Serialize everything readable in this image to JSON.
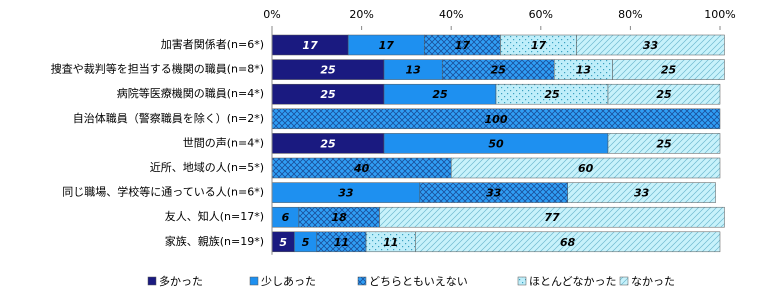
{
  "chart_data": {
    "type": "stacked-bar-horizontal",
    "categories": [
      "加害者関係者(n=6*)",
      "捜査や裁判等を担当する機関の職員(n=8*)",
      "病院等医療機関の職員(n=4*)",
      "自治体職員（警察職員を除く）(n=2*)",
      "世間の声(n=4*)",
      "近所、地域の人(n=5*)",
      "同じ職場、学校等に通っている人(n=6*)",
      "友人、知人(n=17*)",
      "家族、親族(n=19*)"
    ],
    "series": [
      {
        "name": "多かった",
        "color": "#1a1a80",
        "values": [
          17,
          25,
          25,
          0,
          25,
          0,
          0,
          0,
          5
        ]
      },
      {
        "name": "少しあった",
        "color": "#1e90f0",
        "values": [
          17,
          13,
          25,
          0,
          50,
          0,
          33,
          6,
          5
        ]
      },
      {
        "name": "どちらともいえない",
        "color": "#2f9ef5",
        "values": [
          17,
          25,
          0,
          100,
          0,
          40,
          33,
          18,
          11
        ]
      },
      {
        "name": "ほとんどなかった",
        "color": "#bfeefa",
        "values": [
          17,
          13,
          25,
          0,
          0,
          0,
          0,
          0,
          11
        ]
      },
      {
        "name": "なかった",
        "color": "#c8f2fb",
        "values": [
          33,
          25,
          25,
          0,
          25,
          60,
          33,
          77,
          68
        ]
      }
    ],
    "xlim": [
      0,
      100
    ],
    "xticks": [
      {
        "value": 0,
        "label": "0%"
      },
      {
        "value": 20,
        "label": "20%"
      },
      {
        "value": 40,
        "label": "40%"
      },
      {
        "value": 60,
        "label": "60%"
      },
      {
        "value": 80,
        "label": "80%"
      },
      {
        "value": 100,
        "label": "100%"
      }
    ]
  }
}
